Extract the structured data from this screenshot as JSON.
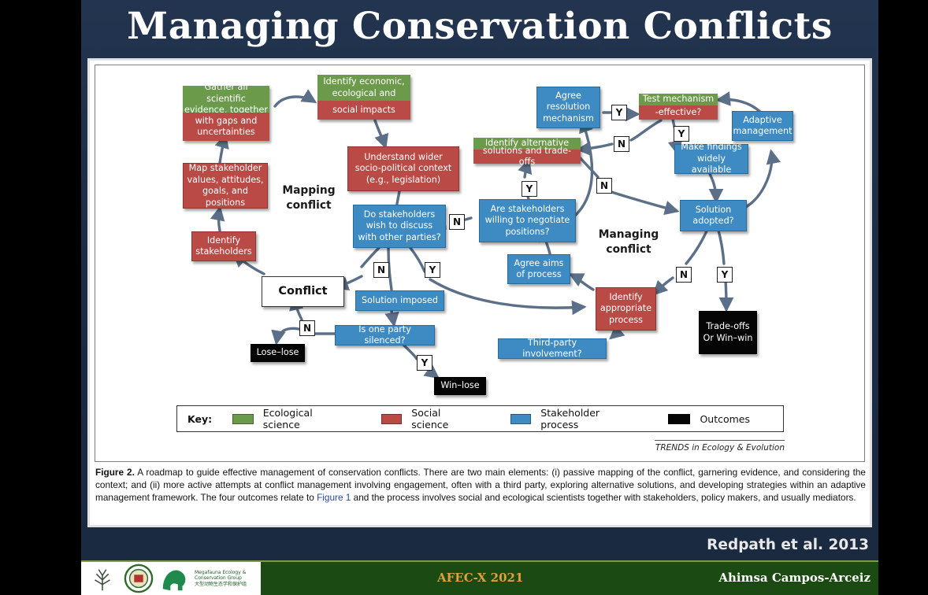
{
  "slide": {
    "title": "Managing Conservation Conflicts",
    "citation": "Redpath et al. 2013",
    "event": "AFEC-X 2021",
    "presenter": "Ahimsa Campos-Arceiz",
    "group_name": [
      "Megafauna Ecology &",
      "Conservation Group",
      "大型动物生态学和保护组"
    ]
  },
  "diagram": {
    "regions": {
      "mapping": [
        "Mapping",
        "conflict"
      ],
      "managing": [
        "Managing",
        "conflict"
      ]
    },
    "nodes": {
      "gather_evidence": {
        "top": "Gather all scientific evidence, together",
        "bottom": "with gaps and uncertainties"
      },
      "identify_impacts": {
        "top": "Identify economic, ecological and",
        "bottom": "social impacts"
      },
      "map_values": "Map stakeholder values, attitudes, goals, and positions",
      "identify_stakeholders": "Identify stakeholders",
      "understand_context": "Understand wider socio-political context (e.g., legislation)",
      "do_stakeholders": "Do stakeholders wish to discuss with other parties?",
      "conflict": "Conflict",
      "solution_imposed": "Solution imposed",
      "one_party_silenced": "Is one party silenced?",
      "lose_lose": "Lose–lose",
      "win_lose": "Win–lose",
      "agree_resolution": "Agree resolution mechanism",
      "test_mechanism": {
        "top": "Test mechanism",
        "bottom": "-effective?"
      },
      "identify_alternative": {
        "top": "Identify alternative",
        "bottom": "solutions and trade-offs"
      },
      "adaptive_management": "Adaptive management",
      "make_findings": "Make findings widely available",
      "willing_negotiate": "Are stakeholders willing to negotiate positions?",
      "solution_adopted": "Solution adopted?",
      "agree_aims": "Agree aims of process",
      "identify_process": "Identify appropriate process",
      "third_party": "Third-party involvement?",
      "tradeoffs": "Trade-offs Or Win–win"
    },
    "decisions": {
      "y_agree_test": "Y",
      "y_test_findings": "Y",
      "n_test_alternative": "N",
      "n_alternative_adopted": "N",
      "y_willing_alternative": "Y",
      "n_do_willing": "N",
      "n_do_conflict": "N",
      "y_do_process": "Y",
      "n_silenced_lose": "N",
      "y_silenced_win": "Y",
      "n_adopted_process": "N",
      "y_adopted_outcome": "Y"
    }
  },
  "key": {
    "title": "Key:",
    "items": [
      {
        "label": "Ecological science",
        "color": "#6b9a4a"
      },
      {
        "label": "Social science",
        "color": "#b94a45"
      },
      {
        "label": "Stakeholder process",
        "color": "#3d8bc2"
      },
      {
        "label": "Outcomes",
        "color": "#050505"
      }
    ],
    "source": "TRENDS in Ecology & Evolution"
  },
  "caption": {
    "label": "Figure 2.",
    "text_before": "A roadmap to guide effective management of conservation conflicts. There are two main elements: (i) passive mapping of the conflict, garnering evidence, and considering the context; and (ii) more active attempts at conflict management involving engagement, often with a third party, exploring alternative solutions, and developing strategies within an adaptive management framework. The four outcomes relate to",
    "link": "Figure 1",
    "text_after": "and the process involves social and ecological scientists together with stakeholders, policy makers, and usually mediators."
  }
}
